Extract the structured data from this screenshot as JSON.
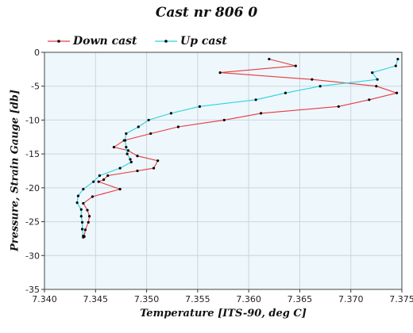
{
  "title": "Cast nr 806 0",
  "chart_data": {
    "type": "line",
    "title": "Cast nr 806 0",
    "xlabel": "Temperature [ITS-90, deg C]",
    "ylabel": "Pressure, Strain Gauge [db]",
    "xlim": [
      7.34,
      7.375
    ],
    "ylim": [
      -35,
      0
    ],
    "x_ticks": [
      "7.340",
      "7.345",
      "7.350",
      "7.355",
      "7.360",
      "7.365",
      "7.370",
      "7.375"
    ],
    "y_ticks": [
      "0",
      "-5",
      "-10",
      "-15",
      "-20",
      "-25",
      "-30",
      "-35"
    ],
    "grid": true,
    "legend_position": "top-left",
    "series": [
      {
        "name": "Down cast",
        "color": "#e8393f",
        "x": [
          7.362,
          7.3646,
          7.3572,
          7.3662,
          7.3725,
          7.3745,
          7.3718,
          7.3688,
          7.3612,
          7.3576,
          7.3531,
          7.3504,
          7.3478,
          7.3468,
          7.3482,
          7.3491,
          7.3511,
          7.3507,
          7.3491,
          7.3462,
          7.3458,
          7.3453,
          7.3474,
          7.3447,
          7.3438,
          7.3442,
          7.3444,
          7.3443,
          7.344,
          7.3439
        ],
        "y": [
          -1.0,
          -2.0,
          -3.0,
          -4.0,
          -5.0,
          -6.0,
          -7.0,
          -8.0,
          -9.0,
          -10.0,
          -11.0,
          -12.0,
          -13.0,
          -14.0,
          -14.5,
          -15.3,
          -16.0,
          -17.1,
          -17.5,
          -18.2,
          -18.8,
          -19.1,
          -20.2,
          -21.3,
          -22.3,
          -23.3,
          -24.2,
          -25.1,
          -26.2,
          -27.2
        ]
      },
      {
        "name": "Up cast",
        "color": "#27d3df",
        "x": [
          7.3746,
          7.3744,
          7.3721,
          7.3726,
          7.367,
          7.3636,
          7.3607,
          7.3552,
          7.3524,
          7.3502,
          7.3492,
          7.348,
          7.3479,
          7.348,
          7.3481,
          7.3484,
          7.3485,
          7.3474,
          7.3454,
          7.3448,
          7.3438,
          7.3433,
          7.3432,
          7.3436,
          7.3436,
          7.3437,
          7.3437,
          7.3438,
          7.3438
        ],
        "y": [
          -1.0,
          -2.0,
          -3.0,
          -4.0,
          -5.0,
          -6.0,
          -7.0,
          -8.0,
          -9.0,
          -10.0,
          -11.0,
          -12.0,
          -13.0,
          -14.0,
          -15.0,
          -15.8,
          -16.2,
          -17.1,
          -18.2,
          -19.1,
          -20.2,
          -21.2,
          -22.2,
          -23.2,
          -24.2,
          -25.1,
          -26.1,
          -27.1,
          -27.3
        ]
      }
    ]
  }
}
